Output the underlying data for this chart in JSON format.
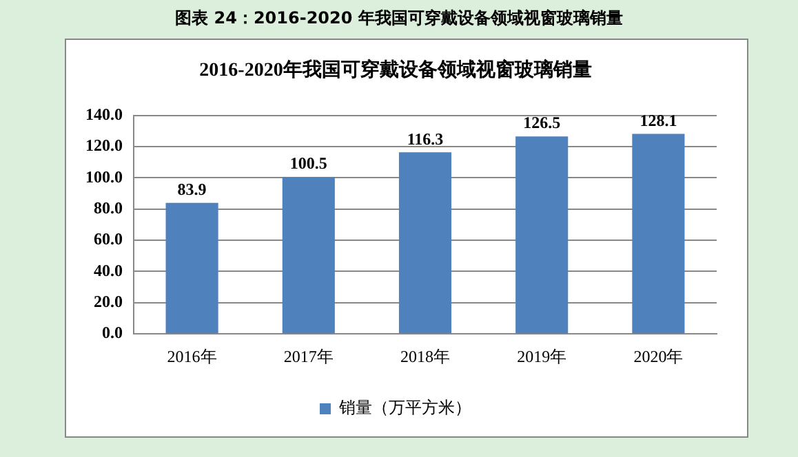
{
  "chart_data": {
    "type": "bar",
    "title": "2016-2020年我国可穿戴设备领域视窗玻璃销量",
    "annotations": [
      "图表 24：2016-2020 年我国可穿戴设备领域视窗玻璃销量"
    ],
    "categories": [
      "2016年",
      "2017年",
      "2018年",
      "2019年",
      "2020年"
    ],
    "series": [
      {
        "name": "销量（万平方米）",
        "color": "#4f81bd",
        "values": [
          83.9,
          100.5,
          116.3,
          126.5,
          128.1
        ]
      }
    ],
    "ylim": [
      0,
      140
    ],
    "yticks": [
      {
        "value": 0,
        "label": "0.0"
      },
      {
        "value": 20,
        "label": "20.0"
      },
      {
        "value": 40,
        "label": "40.0"
      },
      {
        "value": 60,
        "label": "60.0"
      },
      {
        "value": 80,
        "label": "80.0"
      },
      {
        "value": 100,
        "label": "100.0"
      },
      {
        "value": 120,
        "label": "120.0"
      },
      {
        "value": 140,
        "label": "140.0"
      }
    ],
    "grid": "y",
    "legend": "bottom",
    "data_labels": true
  }
}
